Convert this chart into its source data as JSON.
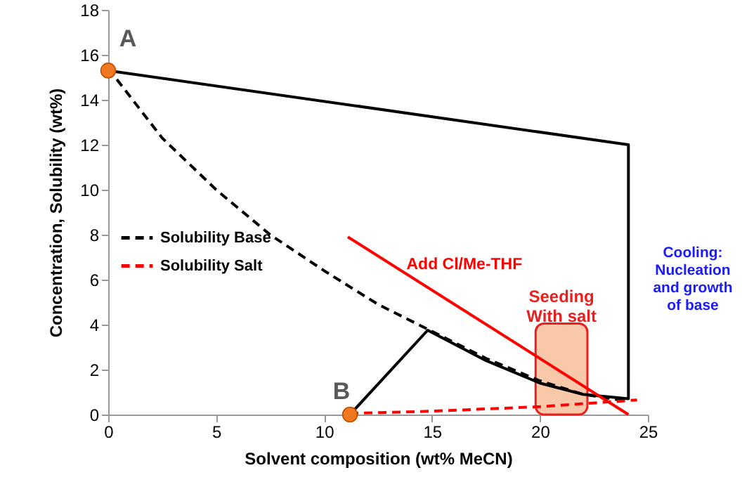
{
  "chart_data": {
    "type": "line",
    "xlabel": "Solvent composition (wt% MeCN)",
    "ylabel": "Concentration, Solubility (wt%)",
    "xlim": [
      0,
      25
    ],
    "ylim": [
      0,
      18
    ],
    "xticks": [
      0,
      5,
      10,
      15,
      20,
      25
    ],
    "yticks": [
      0,
      2,
      4,
      6,
      8,
      10,
      12,
      14,
      16,
      18
    ],
    "grid": false,
    "legend": "left",
    "series": [
      {
        "name": "Solubility Base",
        "color": "#000000",
        "line_style": "dashed",
        "x": [
          0,
          2.5,
          5,
          7.5,
          10,
          12.5,
          15,
          17.5,
          20,
          22,
          24
        ],
        "values": [
          15.4,
          12.3,
          10,
          8,
          6.4,
          4.9,
          3.7,
          2.5,
          1.5,
          0.9,
          0.6
        ]
      },
      {
        "name": "Solubility Salt",
        "color": "#ff0000",
        "line_style": "dashed",
        "x": [
          11.2,
          15,
          20,
          24.5
        ],
        "values": [
          0.05,
          0.15,
          0.35,
          0.65
        ]
      },
      {
        "color": "#000000",
        "line_style": "solid",
        "x": [
          0,
          24.1,
          24.1,
          22,
          20,
          17.5,
          14.8,
          11.2
        ],
        "values": [
          15.3,
          12,
          0.7,
          0.9,
          1.4,
          2.4,
          3.75,
          0
        ]
      },
      {
        "color": "#ff0000",
        "line_style": "solid",
        "x": [
          11.1,
          24.1
        ],
        "values": [
          7.9,
          0
        ]
      },
      {
        "type": "scatter",
        "color": "#f07820",
        "marker": "circle",
        "x": [
          0,
          11.2
        ],
        "values": [
          15.3,
          0
        ]
      }
    ],
    "bands": [
      {
        "axis": "x",
        "from": 19.8,
        "to": 22.2,
        "label": "Seeding\nWith salt",
        "color": "#f8c8a8"
      }
    ],
    "annotations": [
      {
        "text": "A",
        "x": 0,
        "y": 15.3
      },
      {
        "text": "B",
        "x": 11.2,
        "y": 0
      },
      "Add Cl/Me-THF",
      "Cooling:\nNucleation\nand growth\nof base"
    ]
  }
}
